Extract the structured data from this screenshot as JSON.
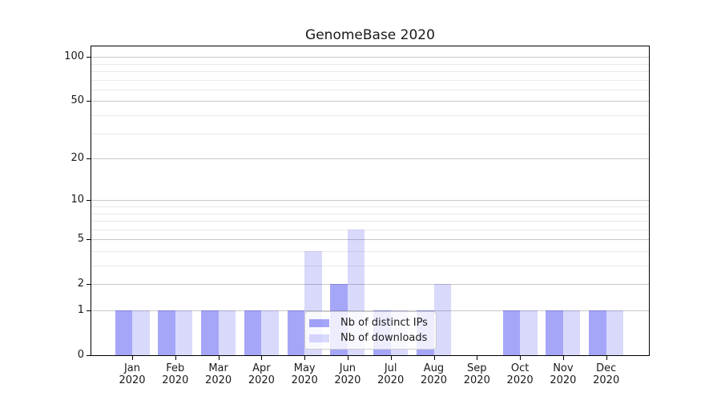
{
  "chart_data": {
    "type": "bar",
    "title": "GenomeBase 2020",
    "categories": [
      {
        "month": "Jan",
        "year": "2020"
      },
      {
        "month": "Feb",
        "year": "2020"
      },
      {
        "month": "Mar",
        "year": "2020"
      },
      {
        "month": "Apr",
        "year": "2020"
      },
      {
        "month": "May",
        "year": "2020"
      },
      {
        "month": "Jun",
        "year": "2020"
      },
      {
        "month": "Jul",
        "year": "2020"
      },
      {
        "month": "Aug",
        "year": "2020"
      },
      {
        "month": "Sep",
        "year": "2020"
      },
      {
        "month": "Oct",
        "year": "2020"
      },
      {
        "month": "Nov",
        "year": "2020"
      },
      {
        "month": "Dec",
        "year": "2020"
      }
    ],
    "series": [
      {
        "name": "Nb of distinct IPs",
        "color": "rgba(0,0,238,0.35)",
        "values": [
          1,
          1,
          1,
          1,
          1,
          2,
          1,
          1,
          0,
          1,
          1,
          1
        ]
      },
      {
        "name": "Nb of downloads",
        "color": "rgba(0,0,238,0.15)",
        "values": [
          1,
          1,
          1,
          1,
          4,
          6,
          1,
          2,
          0,
          1,
          1,
          1
        ]
      }
    ],
    "yscale": "log1p",
    "ylim": [
      0,
      118
    ],
    "yticks": [
      0,
      1,
      2,
      5,
      10,
      20,
      50,
      100
    ],
    "minor_yticks": [
      3,
      4,
      6,
      7,
      8,
      9,
      30,
      40,
      60,
      70,
      80,
      90
    ],
    "grid": {
      "axis": "y",
      "major_color": "#c9c9c9",
      "minor_color": "#eaeaea"
    },
    "legend": {
      "position": "lower-center",
      "entries": [
        "Nb of distinct IPs",
        "Nb of downloads"
      ]
    }
  }
}
